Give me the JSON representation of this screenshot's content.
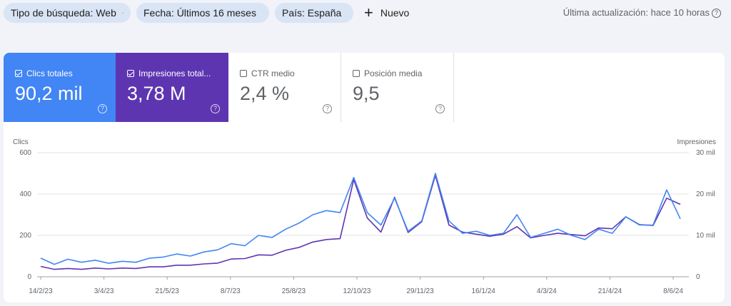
{
  "filters": {
    "chips": [
      {
        "label": "Tipo de búsqueda: Web",
        "icon": "pencil-icon"
      },
      {
        "label": "Fecha: Últimos 16 meses",
        "icon": "pencil-icon"
      },
      {
        "label": "País: España",
        "icon": "close-icon"
      }
    ],
    "new_label": "Nuevo",
    "last_update": "Última actualización: hace 10 horas"
  },
  "metrics": [
    {
      "label": "Clics totales",
      "value": "90,2 mil",
      "checked": true,
      "color": "#4285f4"
    },
    {
      "label": "Impresiones total...",
      "value": "3,78 M",
      "checked": true,
      "color": "#5e35b1"
    },
    {
      "label": "CTR medio",
      "value": "2,4 %",
      "checked": false
    },
    {
      "label": "Posición media",
      "value": "9,5",
      "checked": false
    }
  ],
  "chart": {
    "left_axis_title": "Clics",
    "right_axis_title": "Impresiones",
    "left_ticks": [
      "0",
      "200",
      "400",
      "600"
    ],
    "right_ticks": [
      "0",
      "10 mil",
      "20 mil",
      "30 mil"
    ],
    "x_ticks": [
      "14/2/23",
      "3/4/23",
      "21/5/23",
      "8/7/23",
      "25/8/23",
      "12/10/23",
      "29/11/23",
      "16/1/24",
      "4/3/24",
      "21/4/24",
      "8/6/24"
    ]
  },
  "chart_data": {
    "type": "line",
    "x_labels": [
      "14/2/23",
      "3/4/23",
      "21/5/23",
      "8/7/23",
      "25/8/23",
      "12/10/23",
      "29/11/23",
      "16/1/24",
      "4/3/24",
      "21/4/24",
      "8/6/24"
    ],
    "ylim_left": [
      0,
      600
    ],
    "ylim_right": [
      0,
      30000
    ],
    "series": [
      {
        "name": "Clics totales",
        "color": "#4285f4",
        "axis": "left",
        "values": [
          90,
          60,
          85,
          70,
          80,
          65,
          75,
          70,
          90,
          95,
          110,
          100,
          120,
          130,
          160,
          150,
          200,
          190,
          230,
          260,
          300,
          320,
          310,
          480,
          310,
          250,
          380,
          220,
          270,
          500,
          270,
          210,
          220,
          200,
          210,
          300,
          190,
          210,
          230,
          200,
          180,
          230,
          210,
          290,
          250,
          250,
          420,
          280
        ]
      },
      {
        "name": "Impresiones totales",
        "color": "#5e35b1",
        "axis": "right",
        "values": [
          2500,
          1800,
          2000,
          1800,
          2100,
          1900,
          2100,
          2000,
          2400,
          2400,
          2800,
          2800,
          3100,
          3300,
          4300,
          4400,
          5300,
          5200,
          6400,
          7100,
          8400,
          9000,
          9200,
          23500,
          14200,
          10800,
          19200,
          10700,
          13300,
          24500,
          12500,
          10800,
          10300,
          9800,
          10300,
          12100,
          9400,
          10000,
          10500,
          10200,
          9900,
          11800,
          11600,
          14500,
          12600,
          12400,
          19000,
          17500
        ]
      }
    ]
  }
}
